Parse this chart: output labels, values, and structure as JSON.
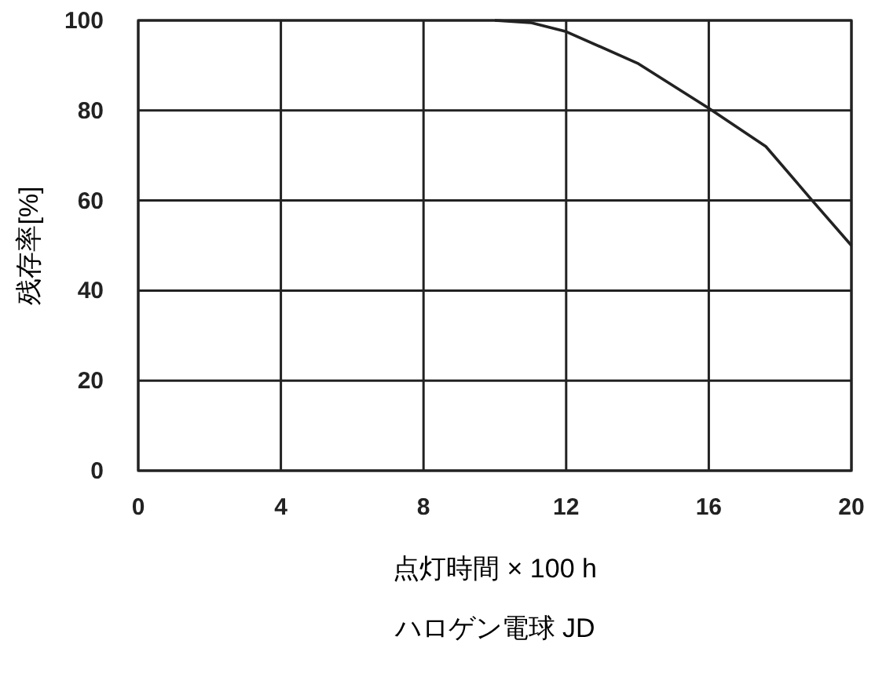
{
  "chart_data": {
    "type": "line",
    "xlabel": "点灯時間 × 100 h",
    "ylabel": "残存率[%]",
    "annotations": [
      "ハロゲン電球 JD"
    ],
    "x": [
      10,
      11,
      12,
      14,
      16,
      17.6,
      18.9,
      20
    ],
    "series": [
      {
        "color": "#222222",
        "values": [
          100,
          99.5,
          97.5,
          90.5,
          80.5,
          72,
          60,
          50
        ]
      }
    ],
    "xlim": [
      0,
      20
    ],
    "ylim": [
      0,
      100
    ],
    "xticks": [
      0,
      4,
      8,
      12,
      16,
      20
    ],
    "yticks": [
      0,
      20,
      40,
      60,
      80,
      100
    ],
    "grid": true,
    "marker": "none",
    "line_style": "solid"
  }
}
